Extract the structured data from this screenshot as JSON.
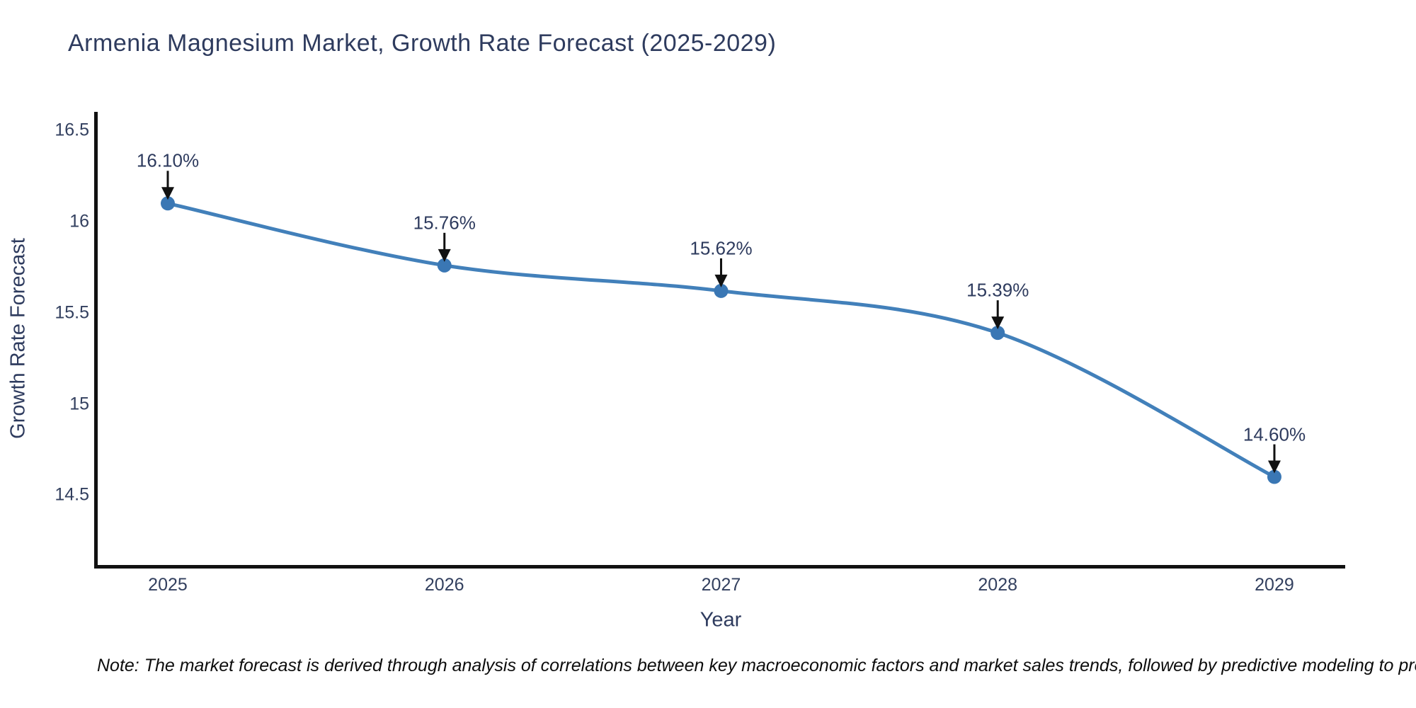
{
  "page": {
    "background_color": "#ffffff"
  },
  "header": {
    "title": "Armenia Magnesium Market, Growth Rate Forecast (2025-2029)"
  },
  "footnote": {
    "text": "Note: The market forecast is derived through analysis of correlations between key macroeconomic factors and market sales trends, followed by predictive modeling to project future sal"
  },
  "chart_data": {
    "type": "line",
    "title": "Armenia Magnesium Market, Growth Rate Forecast (2025-2029)",
    "xlabel": "Year",
    "ylabel": "Growth Rate Forecast",
    "x": [
      2025,
      2026,
      2027,
      2028,
      2029
    ],
    "series": [
      {
        "name": "Growth Rate Forecast",
        "values": [
          16.1,
          15.76,
          15.62,
          15.39,
          14.6
        ]
      }
    ],
    "point_labels": [
      "16.10%",
      "15.76%",
      "15.62%",
      "15.39%",
      "14.60%"
    ],
    "xtick_labels": [
      "2025",
      "2026",
      "2027",
      "2028",
      "2029"
    ],
    "ytick_values": [
      14.5,
      15,
      15.5,
      16,
      16.5
    ],
    "ytick_labels": [
      "14.5",
      "15",
      "15.5",
      "16",
      "16.5"
    ],
    "xlim": [
      2024.739,
      2029.256
    ],
    "ylim": [
      14.109,
      16.602
    ],
    "grid": false,
    "legend_position": "none",
    "line_shape": "spline",
    "colors": {
      "line": "#4280ba",
      "marker": "#3a77b4",
      "axis_line": "#111111",
      "arrow": "#111111",
      "tick_text": "#33405f",
      "title_text": "#2e3b5e"
    }
  }
}
